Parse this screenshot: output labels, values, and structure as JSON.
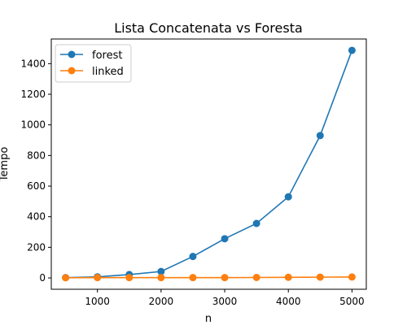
{
  "chart_data": {
    "type": "line",
    "title": "Lista Concatenata vs Foresta",
    "xlabel": "n",
    "ylabel": "Tempo",
    "x": [
      500,
      1000,
      1500,
      2000,
      2500,
      3000,
      3500,
      4000,
      4500,
      5000
    ],
    "xlim": [
      275,
      5225
    ],
    "ylim": [
      -74,
      1561
    ],
    "xticks": [
      1000,
      2000,
      3000,
      4000,
      5000
    ],
    "yticks": [
      0,
      200,
      400,
      600,
      800,
      1000,
      1200,
      1400
    ],
    "grid": false,
    "legend_position": "top-left",
    "series": [
      {
        "name": "forest",
        "color": "#1f77b4",
        "marker": "circle",
        "values": [
          2,
          7,
          22,
          42,
          140,
          256,
          356,
          530,
          930,
          1487
        ]
      },
      {
        "name": "linked",
        "color": "#ff7f0e",
        "marker": "circle",
        "values": [
          1,
          2,
          2,
          2,
          2,
          2,
          3,
          4,
          5,
          6
        ]
      }
    ]
  }
}
